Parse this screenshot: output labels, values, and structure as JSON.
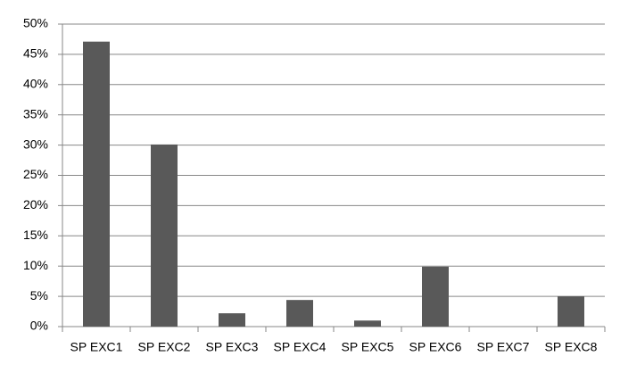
{
  "chart_data": {
    "type": "bar",
    "categories": [
      "SP EXC1",
      "SP EXC2",
      "SP EXC3",
      "SP EXC4",
      "SP EXC5",
      "SP EXC6",
      "SP EXC7",
      "SP EXC8"
    ],
    "values": [
      47.1,
      30.1,
      2.2,
      4.4,
      1.0,
      9.9,
      0,
      5.0
    ],
    "color": "#595959",
    "ylim": [
      0,
      50
    ],
    "yticks": [
      {
        "value": 0,
        "label": "0%"
      },
      {
        "value": 5,
        "label": "5%"
      },
      {
        "value": 10,
        "label": "10%"
      },
      {
        "value": 15,
        "label": "15%"
      },
      {
        "value": 20,
        "label": "20%"
      },
      {
        "value": 25,
        "label": "25%"
      },
      {
        "value": 30,
        "label": "30%"
      },
      {
        "value": 35,
        "label": "35%"
      },
      {
        "value": 40,
        "label": "40%"
      },
      {
        "value": 45,
        "label": "45%"
      },
      {
        "value": 50,
        "label": "50%"
      }
    ],
    "grid": true
  }
}
